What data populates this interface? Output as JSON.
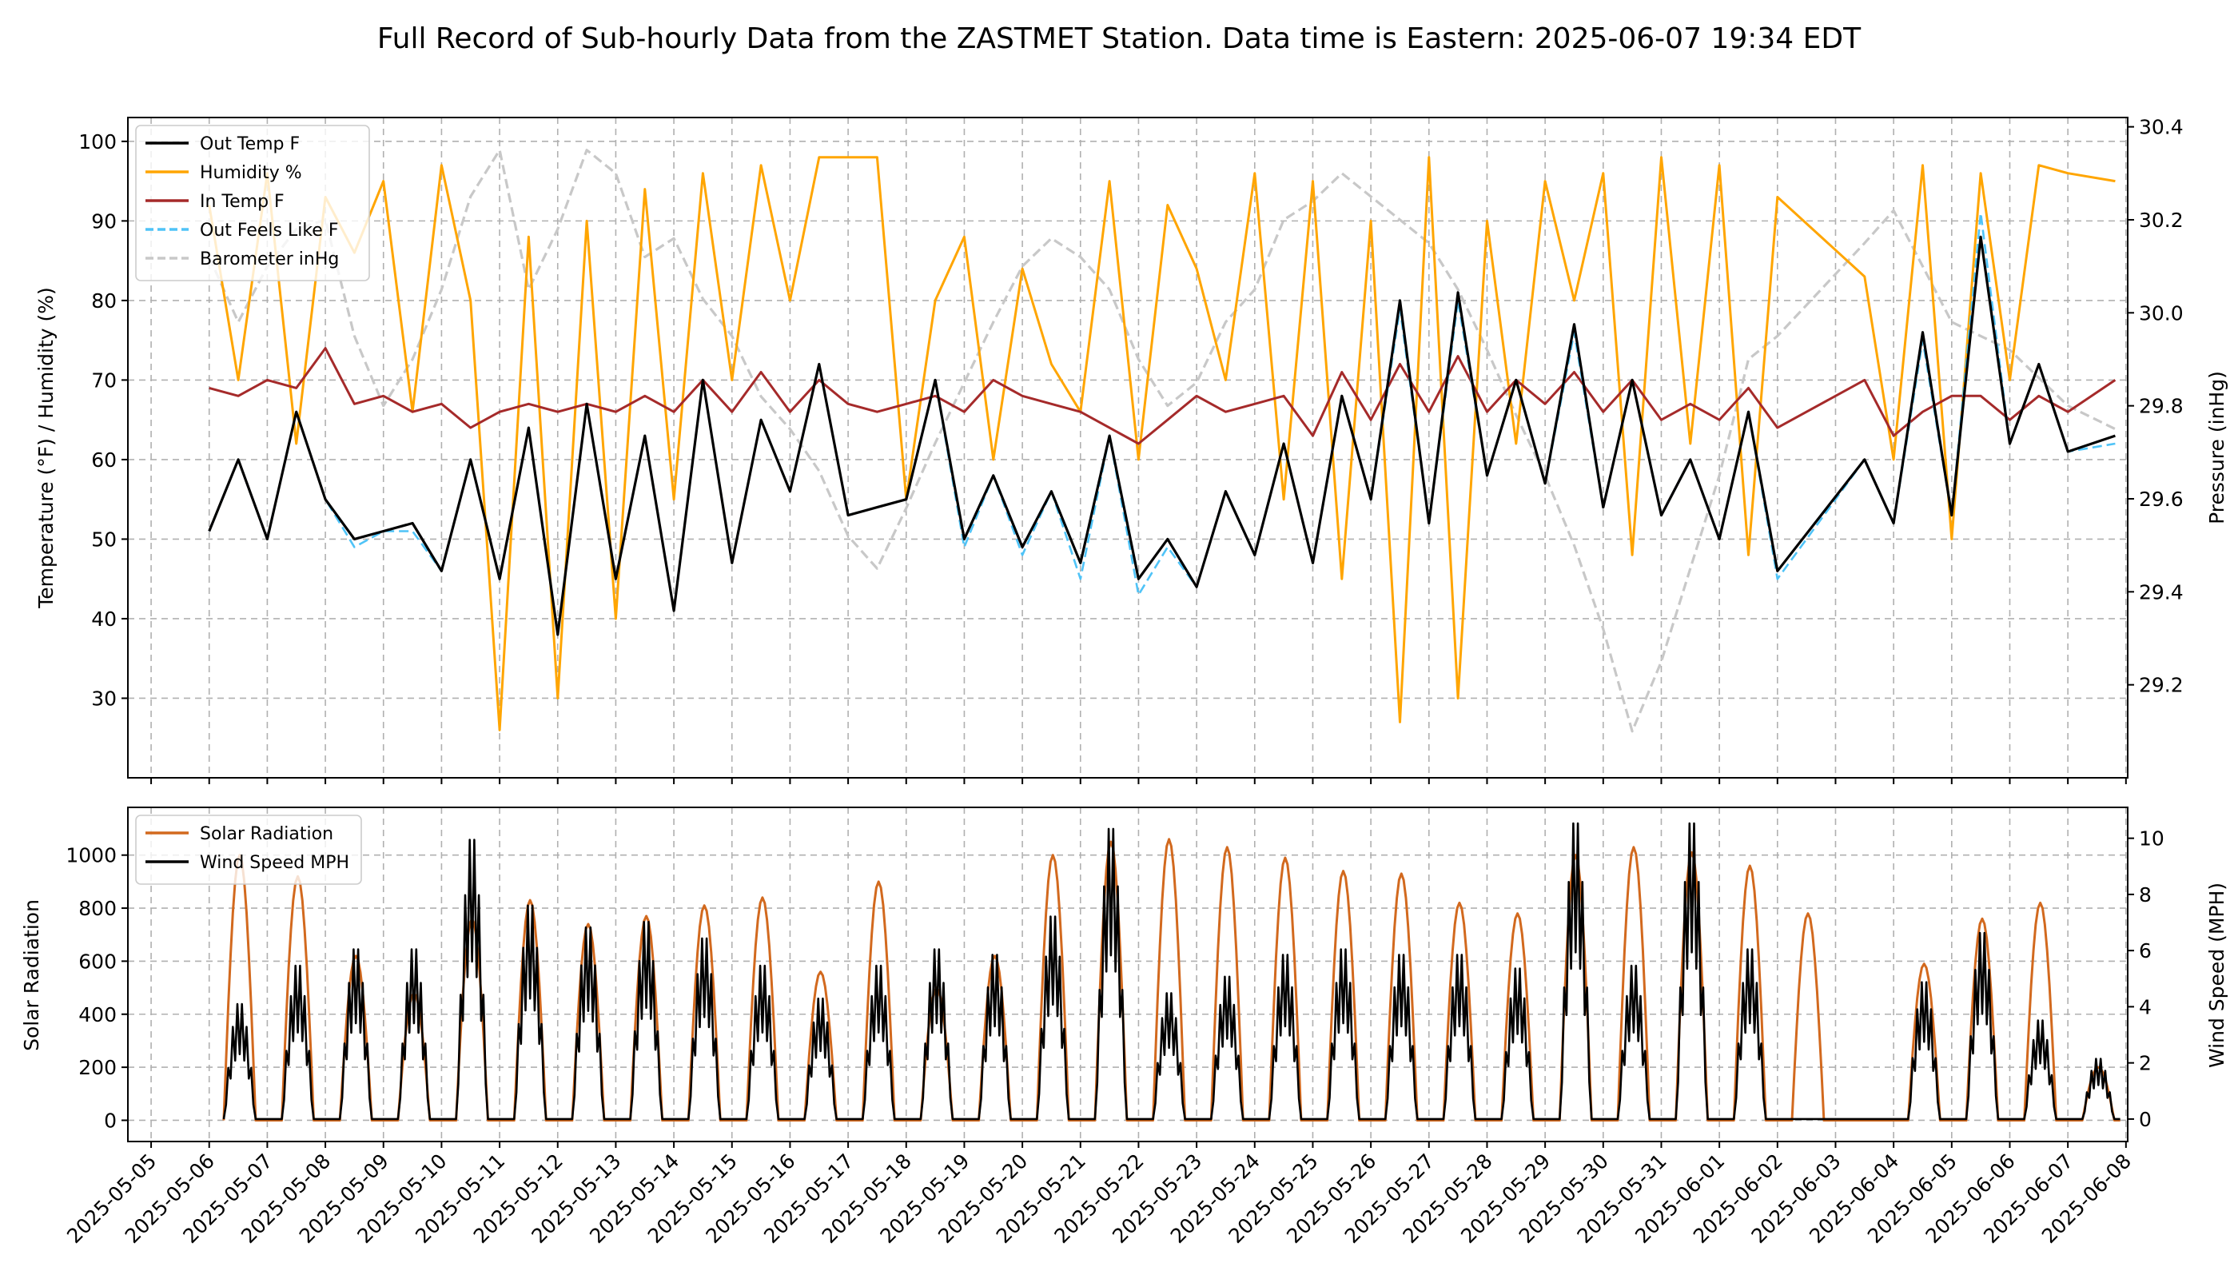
{
  "title": "Full Record of Sub-hourly Data from the ZASTMET Station. Data time is Eastern: 2025-06-07 19:34 EDT",
  "colors": {
    "out_temp": "#000000",
    "humidity": "#ffa500",
    "in_temp": "#a52a2a",
    "feels_like": "#4fc3f7",
    "barometer": "#c8c8c8",
    "solar": "#d2691e",
    "wind": "#000000"
  },
  "chart_data": [
    {
      "type": "line",
      "panel": "top",
      "ylabel_left": "Temperature (°F) / Humidity (%)",
      "ylabel_right": "Pressure (inHg)",
      "ylim_left": [
        20,
        103
      ],
      "ylim_right": [
        29.0,
        30.42
      ],
      "yticks_left": [
        30,
        40,
        50,
        60,
        70,
        80,
        90,
        100
      ],
      "yticks_right": [
        29.2,
        29.4,
        29.6,
        29.8,
        30.0,
        30.2,
        30.4
      ],
      "ytick_labels_left": [
        "30",
        "40",
        "50",
        "60",
        "70",
        "80",
        "90",
        "100"
      ],
      "ytick_labels_right": [
        "29.2",
        "29.4",
        "29.6",
        "29.8",
        "30.0",
        "30.2",
        "30.4"
      ],
      "grid": true,
      "legend_position": "top-left",
      "x": [
        "2025-05-06",
        "2025-05-06 12:00",
        "2025-05-07",
        "2025-05-07 12:00",
        "2025-05-08",
        "2025-05-08 12:00",
        "2025-05-09",
        "2025-05-09 12:00",
        "2025-05-10",
        "2025-05-10 12:00",
        "2025-05-11",
        "2025-05-11 12:00",
        "2025-05-12",
        "2025-05-12 12:00",
        "2025-05-13",
        "2025-05-13 12:00",
        "2025-05-14",
        "2025-05-14 12:00",
        "2025-05-15",
        "2025-05-15 12:00",
        "2025-05-16",
        "2025-05-16 12:00",
        "2025-05-17",
        "2025-05-17 12:00",
        "2025-05-18",
        "2025-05-18 12:00",
        "2025-05-19",
        "2025-05-19 12:00",
        "2025-05-20",
        "2025-05-20 12:00",
        "2025-05-21",
        "2025-05-21 12:00",
        "2025-05-22",
        "2025-05-22 12:00",
        "2025-05-23",
        "2025-05-23 12:00",
        "2025-05-24",
        "2025-05-24 12:00",
        "2025-05-25",
        "2025-05-25 12:00",
        "2025-05-26",
        "2025-05-26 12:00",
        "2025-05-27",
        "2025-05-27 12:00",
        "2025-05-28",
        "2025-05-28 12:00",
        "2025-05-29",
        "2025-05-29 12:00",
        "2025-05-30",
        "2025-05-30 12:00",
        "2025-05-31",
        "2025-05-31 12:00",
        "2025-06-01",
        "2025-06-01 12:00",
        "2025-06-02",
        "2025-06-03 12:00",
        "2025-06-04",
        "2025-06-04 12:00",
        "2025-06-05",
        "2025-06-05 12:00",
        "2025-06-06",
        "2025-06-06 12:00",
        "2025-06-07",
        "2025-06-07 19:34"
      ],
      "series": [
        {
          "name": "Out Temp F",
          "axis": "left",
          "color_key": "out_temp",
          "dash": "solid",
          "values": [
            51,
            60,
            50,
            66,
            55,
            50,
            51,
            52,
            46,
            60,
            45,
            64,
            38,
            67,
            45,
            63,
            41,
            70,
            47,
            65,
            56,
            72,
            53,
            54,
            55,
            70,
            50,
            58,
            49,
            56,
            47,
            63,
            45,
            50,
            44,
            56,
            48,
            62,
            47,
            68,
            55,
            80,
            52,
            81,
            58,
            70,
            57,
            77,
            54,
            70,
            53,
            60,
            50,
            66,
            46,
            60,
            52,
            76,
            53,
            88,
            62,
            72,
            61,
            63
          ]
        },
        {
          "name": "Humidity %",
          "axis": "left",
          "color_key": "humidity",
          "dash": "solid",
          "values": [
            92,
            70,
            96,
            62,
            93,
            86,
            95,
            66,
            97,
            80,
            26,
            88,
            30,
            90,
            40,
            94,
            55,
            96,
            70,
            97,
            80,
            98,
            98,
            98,
            55,
            80,
            88,
            60,
            84,
            72,
            66,
            95,
            60,
            92,
            84,
            70,
            96,
            55,
            95,
            45,
            90,
            27,
            98,
            30,
            90,
            62,
            95,
            80,
            96,
            48,
            98,
            62,
            97,
            48,
            93,
            83,
            60,
            97,
            50,
            96,
            70,
            97,
            96,
            95
          ]
        },
        {
          "name": "In Temp F",
          "axis": "left",
          "color_key": "in_temp",
          "dash": "solid",
          "values": [
            69,
            68,
            70,
            69,
            74,
            67,
            68,
            66,
            67,
            64,
            66,
            67,
            66,
            67,
            66,
            68,
            66,
            70,
            66,
            71,
            66,
            70,
            67,
            66,
            67,
            68,
            66,
            70,
            68,
            67,
            66,
            64,
            62,
            65,
            68,
            66,
            67,
            68,
            63,
            71,
            65,
            72,
            66,
            73,
            66,
            70,
            67,
            71,
            66,
            70,
            65,
            67,
            65,
            69,
            64,
            70,
            63,
            66,
            68,
            68,
            65,
            68,
            66,
            70
          ]
        },
        {
          "name": "Out Feels Like F",
          "axis": "left",
          "color_key": "feels_like",
          "dash": "dashed",
          "values": [
            51,
            60,
            50,
            66,
            55,
            49,
            51,
            51,
            46,
            60,
            45,
            64,
            38,
            67,
            45,
            63,
            41,
            70,
            47,
            65,
            56,
            72,
            53,
            54,
            55,
            70,
            49,
            58,
            48,
            56,
            45,
            63,
            43,
            49,
            44,
            56,
            48,
            62,
            47,
            68,
            55,
            79,
            52,
            80,
            58,
            70,
            57,
            76,
            54,
            70,
            53,
            60,
            50,
            66,
            45,
            60,
            52,
            75,
            53,
            91,
            62,
            72,
            61,
            62
          ]
        },
        {
          "name": "Barometer inHg",
          "axis": "right",
          "color_key": "barometer",
          "dash": "dashed",
          "values": [
            30.12,
            29.98,
            30.1,
            30.18,
            30.2,
            29.95,
            29.8,
            29.9,
            30.05,
            30.25,
            30.35,
            30.05,
            30.18,
            30.35,
            30.3,
            30.12,
            30.16,
            30.03,
            29.95,
            29.82,
            29.75,
            29.66,
            29.52,
            29.45,
            29.58,
            29.72,
            29.85,
            29.98,
            30.1,
            30.16,
            30.12,
            30.05,
            29.9,
            29.8,
            29.85,
            29.98,
            30.05,
            30.2,
            30.24,
            30.3,
            30.25,
            30.2,
            30.15,
            30.05,
            29.92,
            29.78,
            29.65,
            29.5,
            29.32,
            29.1,
            29.25,
            29.45,
            29.65,
            29.9,
            29.95,
            30.15,
            30.22,
            30.1,
            29.98,
            29.95,
            29.92,
            29.86,
            29.8,
            29.75
          ]
        }
      ]
    },
    {
      "type": "line",
      "panel": "bottom",
      "ylabel_left": "Solar Radiation",
      "ylabel_right": "Wind Speed (MPH)",
      "ylim_left": [
        -80,
        1180
      ],
      "ylim_right": [
        -0.8,
        11.1
      ],
      "yticks_left": [
        0,
        200,
        400,
        600,
        800,
        1000
      ],
      "yticks_right": [
        0,
        2,
        4,
        6,
        8,
        10
      ],
      "ytick_labels_left": [
        "0",
        "200",
        "400",
        "600",
        "800",
        "1000"
      ],
      "ytick_labels_right": [
        "0",
        "2",
        "4",
        "6",
        "8",
        "10"
      ],
      "grid": true,
      "legend_position": "top-left",
      "x_ticks": [
        "2025-05-05",
        "2025-05-06",
        "2025-05-07",
        "2025-05-08",
        "2025-05-09",
        "2025-05-10",
        "2025-05-11",
        "2025-05-12",
        "2025-05-13",
        "2025-05-14",
        "2025-05-15",
        "2025-05-16",
        "2025-05-17",
        "2025-05-18",
        "2025-05-19",
        "2025-05-20",
        "2025-05-21",
        "2025-05-22",
        "2025-05-23",
        "2025-05-24",
        "2025-05-25",
        "2025-05-26",
        "2025-05-27",
        "2025-05-28",
        "2025-05-29",
        "2025-05-30",
        "2025-05-31",
        "2025-06-01",
        "2025-06-02",
        "2025-06-03",
        "2025-06-04",
        "2025-06-05",
        "2025-06-06",
        "2025-06-07",
        "2025-06-08"
      ],
      "series": [
        {
          "name": "Solar Radiation",
          "axis": "left",
          "color_key": "solar",
          "daily_peaks": [
            [
              "2025-05-06",
              1000
            ],
            [
              "2025-05-07",
              920
            ],
            [
              "2025-05-08",
              620
            ],
            [
              "2025-05-09",
              480
            ],
            [
              "2025-05-10",
              760
            ],
            [
              "2025-05-11",
              830
            ],
            [
              "2025-05-12",
              740
            ],
            [
              "2025-05-13",
              770
            ],
            [
              "2025-05-14",
              810
            ],
            [
              "2025-05-15",
              840
            ],
            [
              "2025-05-16",
              560
            ],
            [
              "2025-05-17",
              900
            ],
            [
              "2025-05-18",
              500
            ],
            [
              "2025-05-19",
              620
            ],
            [
              "2025-05-20",
              1000
            ],
            [
              "2025-05-21",
              1050
            ],
            [
              "2025-05-22",
              1060
            ],
            [
              "2025-05-23",
              1030
            ],
            [
              "2025-05-24",
              990
            ],
            [
              "2025-05-25",
              940
            ],
            [
              "2025-05-26",
              930
            ],
            [
              "2025-05-27",
              820
            ],
            [
              "2025-05-28",
              780
            ],
            [
              "2025-05-29",
              1000
            ],
            [
              "2025-05-30",
              1030
            ],
            [
              "2025-05-31",
              1010
            ],
            [
              "2025-06-01",
              960
            ],
            [
              "2025-06-02",
              780
            ],
            [
              "2025-06-04",
              590
            ],
            [
              "2025-06-05",
              760
            ],
            [
              "2025-06-06",
              820
            ],
            [
              "2025-06-07",
              200
            ]
          ]
        },
        {
          "name": "Wind Speed MPH",
          "axis": "right",
          "color_key": "wind",
          "daily_peaks": [
            [
              "2025-05-06",
              4.2
            ],
            [
              "2025-05-07",
              5.6
            ],
            [
              "2025-05-08",
              6.2
            ],
            [
              "2025-05-09",
              6.2
            ],
            [
              "2025-05-10",
              10.2
            ],
            [
              "2025-05-11",
              7.8
            ],
            [
              "2025-05-12",
              7.0
            ],
            [
              "2025-05-13",
              7.2
            ],
            [
              "2025-05-14",
              6.6
            ],
            [
              "2025-05-15",
              5.6
            ],
            [
              "2025-05-16",
              4.4
            ],
            [
              "2025-05-17",
              5.6
            ],
            [
              "2025-05-18",
              6.2
            ],
            [
              "2025-05-19",
              6.0
            ],
            [
              "2025-05-20",
              7.4
            ],
            [
              "2025-05-21",
              10.6
            ],
            [
              "2025-05-22",
              4.6
            ],
            [
              "2025-05-23",
              5.2
            ],
            [
              "2025-05-24",
              6.0
            ],
            [
              "2025-05-25",
              6.2
            ],
            [
              "2025-05-26",
              6.0
            ],
            [
              "2025-05-27",
              6.0
            ],
            [
              "2025-05-28",
              5.5
            ],
            [
              "2025-05-29",
              10.8
            ],
            [
              "2025-05-30",
              5.6
            ],
            [
              "2025-05-31",
              10.8
            ],
            [
              "2025-06-01",
              6.2
            ],
            [
              "2025-06-02",
              0.0
            ],
            [
              "2025-06-04",
              5.0
            ],
            [
              "2025-06-05",
              6.8
            ],
            [
              "2025-06-06",
              3.6
            ],
            [
              "2025-06-07",
              2.2
            ]
          ]
        }
      ]
    }
  ]
}
